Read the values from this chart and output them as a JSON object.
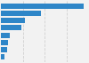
{
  "values": [
    9756,
    4690,
    2810,
    2430,
    1080,
    870,
    680,
    390
  ],
  "bar_color": "#2e86c8",
  "background_color": "#f2f2f2",
  "plot_background": "#f2f2f2",
  "grid_color": "#d0d0d0",
  "n_bars": 8
}
